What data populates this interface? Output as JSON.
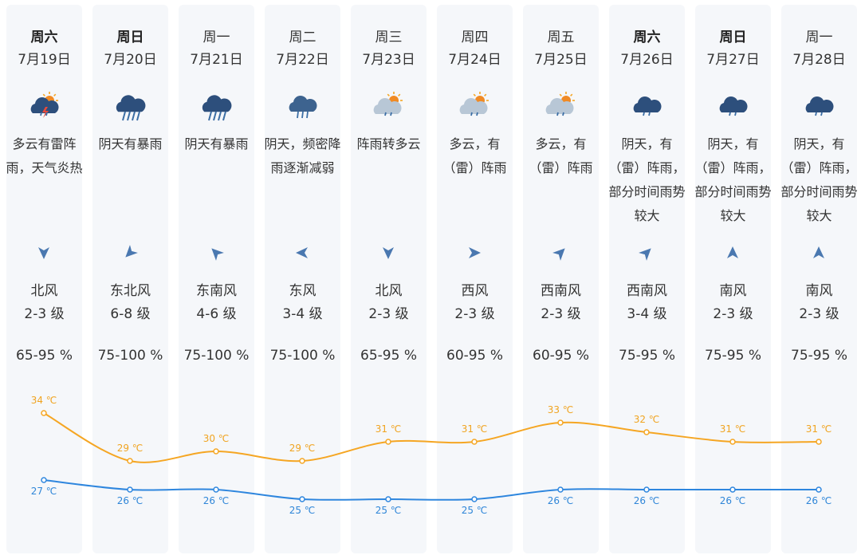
{
  "colors": {
    "high_line": "#f5a623",
    "low_line": "#2e86de",
    "column_bg": "#f5f7fa",
    "wind_arrow": "#4a78b0"
  },
  "days": [
    {
      "weekday": "周六",
      "weekend": true,
      "date": "7月19日",
      "icon": "thunderstorm-sun-icon",
      "desc": "多云有雷阵雨，天气炎热",
      "wind_dir": "北风",
      "wind_arrow_deg": 180,
      "wind_level": "2-3 级",
      "humidity": "65-95 %",
      "high_label": "34 ℃",
      "low_label": "27 ℃"
    },
    {
      "weekday": "周日",
      "weekend": true,
      "date": "7月20日",
      "icon": "heavy-rain-icon",
      "desc": "阴天有暴雨",
      "wind_dir": "东北风",
      "wind_arrow_deg": 225,
      "wind_level": "6-8 级",
      "humidity": "75-100 %",
      "high_label": "29 ℃",
      "low_label": "26 ℃"
    },
    {
      "weekday": "周一",
      "weekend": false,
      "date": "7月21日",
      "icon": "heavy-rain-icon",
      "desc": "阴天有暴雨",
      "wind_dir": "东南风",
      "wind_arrow_deg": 315,
      "wind_level": "4-6 级",
      "humidity": "75-100 %",
      "high_label": "30 ℃",
      "low_label": "26 ℃"
    },
    {
      "weekday": "周二",
      "weekend": false,
      "date": "7月22日",
      "icon": "rain-icon",
      "desc": "阴天，频密降雨逐渐减弱",
      "wind_dir": "东风",
      "wind_arrow_deg": 270,
      "wind_level": "3-4 级",
      "humidity": "75-100 %",
      "high_label": "29 ℃",
      "low_label": "25 ℃"
    },
    {
      "weekday": "周三",
      "weekend": false,
      "date": "7月23日",
      "icon": "sun-shower-icon",
      "desc": "阵雨转多云",
      "wind_dir": "北风",
      "wind_arrow_deg": 180,
      "wind_level": "2-3 级",
      "humidity": "65-95 %",
      "high_label": "31 ℃",
      "low_label": "25 ℃"
    },
    {
      "weekday": "周四",
      "weekend": false,
      "date": "7月24日",
      "icon": "sun-shower-icon",
      "desc": "多云，有（雷）阵雨",
      "wind_dir": "西风",
      "wind_arrow_deg": 90,
      "wind_level": "2-3 级",
      "humidity": "60-95 %",
      "high_label": "31 ℃",
      "low_label": "25 ℃"
    },
    {
      "weekday": "周五",
      "weekend": false,
      "date": "7月25日",
      "icon": "sun-shower-icon",
      "desc": "多云，有（雷）阵雨",
      "wind_dir": "西南风",
      "wind_arrow_deg": 45,
      "wind_level": "2-3 级",
      "humidity": "60-95 %",
      "high_label": "33 ℃",
      "low_label": "26 ℃"
    },
    {
      "weekday": "周六",
      "weekend": true,
      "date": "7月26日",
      "icon": "light-rain-icon",
      "desc": "阴天，有（雷）阵雨，部分时间雨势较大",
      "wind_dir": "西南风",
      "wind_arrow_deg": 45,
      "wind_level": "3-4 级",
      "humidity": "75-95 %",
      "high_label": "32 ℃",
      "low_label": "26 ℃"
    },
    {
      "weekday": "周日",
      "weekend": true,
      "date": "7月27日",
      "icon": "light-rain-icon",
      "desc": "阴天，有（雷）阵雨，部分时间雨势较大",
      "wind_dir": "南风",
      "wind_arrow_deg": 0,
      "wind_level": "2-3 级",
      "humidity": "75-95 %",
      "high_label": "31 ℃",
      "low_label": "26 ℃"
    },
    {
      "weekday": "周一",
      "weekend": false,
      "date": "7月28日",
      "icon": "light-rain-icon",
      "desc": "阴天，有（雷）阵雨，部分时间雨势较大",
      "wind_dir": "南风",
      "wind_arrow_deg": 0,
      "wind_level": "2-3 级",
      "humidity": "75-95 %",
      "high_label": "31 ℃",
      "low_label": "26 ℃"
    }
  ],
  "chart_data": {
    "type": "line",
    "x": [
      "7月19日",
      "7月20日",
      "7月21日",
      "7月22日",
      "7月23日",
      "7月24日",
      "7月25日",
      "7月26日",
      "7月27日",
      "7月28日"
    ],
    "unit": "℃",
    "series": [
      {
        "key": "high",
        "values": [
          34,
          29,
          30,
          29,
          31,
          31,
          33,
          32,
          31,
          31
        ]
      },
      {
        "key": "low",
        "values": [
          27,
          26,
          26,
          25,
          25,
          25,
          26,
          26,
          26,
          26
        ]
      }
    ]
  }
}
